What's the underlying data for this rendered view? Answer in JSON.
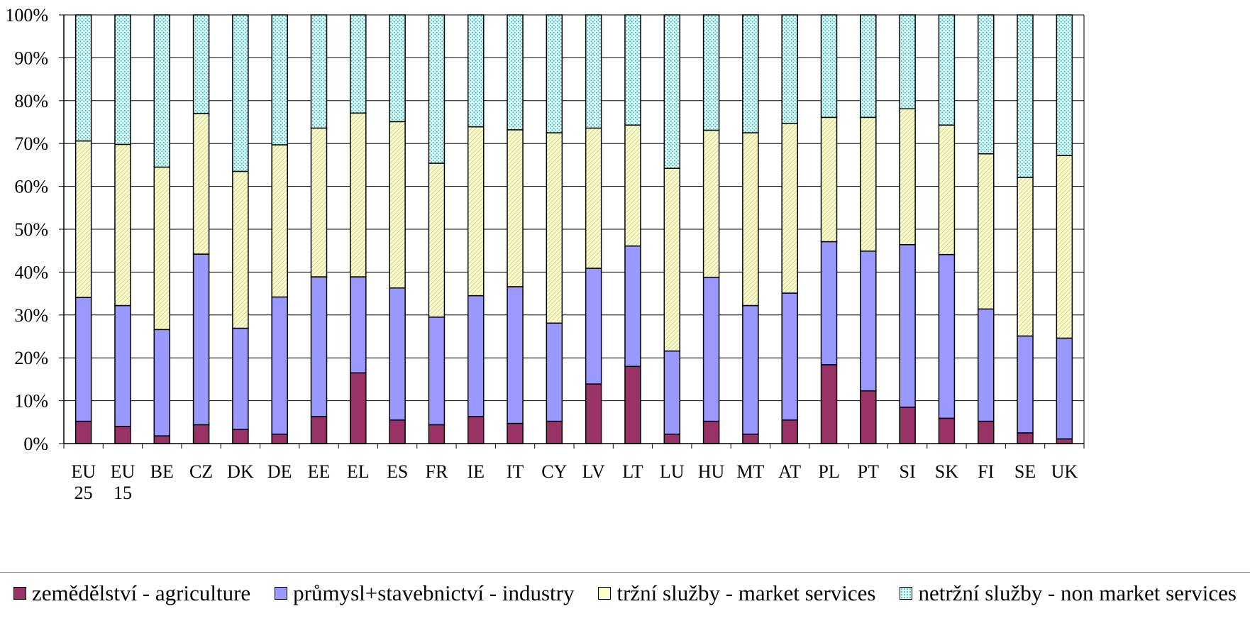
{
  "chart_data": {
    "type": "bar",
    "stacked": true,
    "normalized": true,
    "categories": [
      "EU 25",
      "EU 15",
      "BE",
      "CZ",
      "DK",
      "DE",
      "EE",
      "EL",
      "ES",
      "FR",
      "IE",
      "IT",
      "CY",
      "LV",
      "LT",
      "LU",
      "HU",
      "MT",
      "AT",
      "PL",
      "PT",
      "SI",
      "SK",
      "FI",
      "SE",
      "UK"
    ],
    "series": [
      {
        "name": "zemědělství - agriculture",
        "color": "#993366",
        "values": [
          5.2,
          4.0,
          1.8,
          4.4,
          3.3,
          2.2,
          6.3,
          16.5,
          5.5,
          4.4,
          6.3,
          4.7,
          5.2,
          13.9,
          18.0,
          2.2,
          5.2,
          2.2,
          5.5,
          18.4,
          12.3,
          8.5,
          5.9,
          5.2,
          2.5,
          1.1
        ]
      },
      {
        "name": "průmysl+stavebnictví - industry",
        "color": "#9999ff",
        "values": [
          28.9,
          28.2,
          24.8,
          39.8,
          23.6,
          32.0,
          32.6,
          22.4,
          30.8,
          25.1,
          28.2,
          31.9,
          22.9,
          27.0,
          28.1,
          19.4,
          33.6,
          30.0,
          29.6,
          28.7,
          32.6,
          37.9,
          38.2,
          26.2,
          22.6,
          23.5
        ]
      },
      {
        "name": "tržní služby - market services",
        "color": "#ffffcc",
        "values": [
          36.5,
          37.6,
          37.9,
          32.8,
          36.6,
          35.5,
          34.7,
          38.2,
          38.8,
          35.9,
          39.4,
          36.6,
          44.4,
          32.7,
          28.2,
          42.6,
          34.3,
          40.3,
          39.6,
          29.0,
          31.2,
          31.7,
          30.2,
          36.2,
          37.0,
          42.6
        ]
      },
      {
        "name": "netržní služby - non market services",
        "color": "#ccffff",
        "values": [
          29.4,
          30.2,
          35.5,
          23.0,
          36.5,
          30.3,
          26.4,
          22.9,
          24.9,
          34.6,
          26.1,
          26.8,
          27.5,
          26.4,
          25.7,
          35.8,
          26.9,
          27.5,
          25.3,
          23.9,
          23.9,
          21.9,
          25.7,
          32.4,
          37.9,
          32.8
        ]
      }
    ],
    "yaxis": {
      "min": 0,
      "max": 100,
      "step": 10,
      "tick_labels": [
        "0%",
        "10%",
        "20%",
        "30%",
        "40%",
        "50%",
        "60%",
        "70%",
        "80%",
        "90%",
        "100%"
      ]
    },
    "grid": true,
    "legend_position": "bottom"
  }
}
